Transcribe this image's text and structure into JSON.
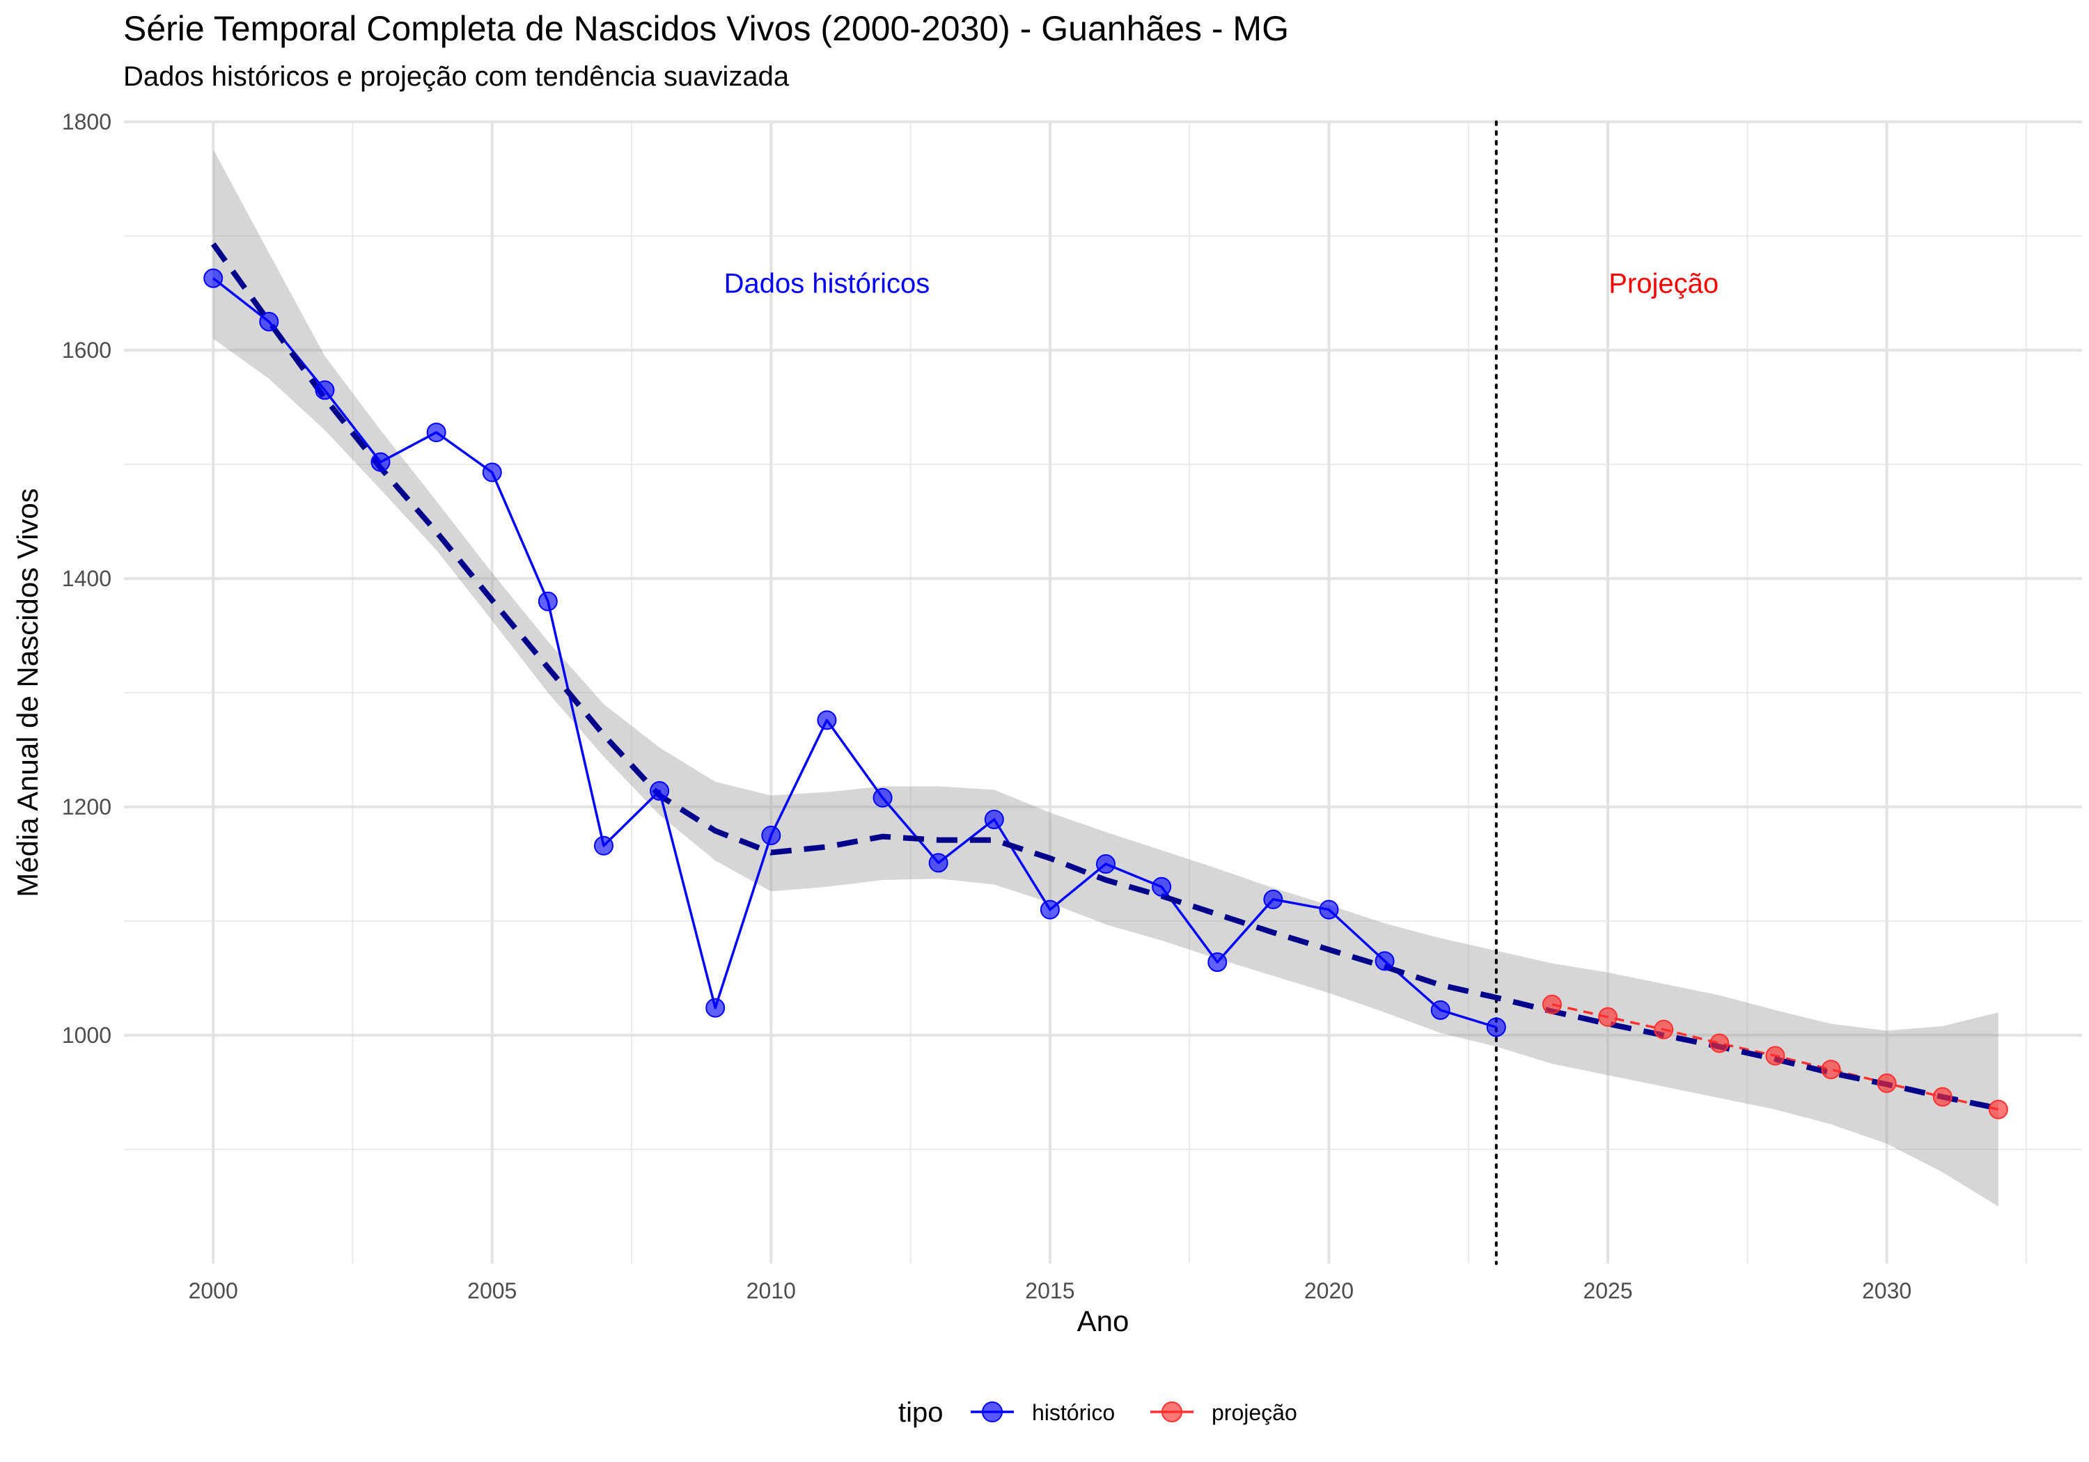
{
  "title": "Série Temporal Completa de Nascidos Vivos (2000-2030) -  Guanhães - MG",
  "subtitle": "Dados históricos e projeção com tendência suavizada",
  "chart_data": {
    "type": "line",
    "title": "Série Temporal Completa de Nascidos Vivos (2000-2030) -  Guanhães - MG",
    "subtitle": "Dados históricos e projeção com tendência suavizada",
    "xlabel": "Ano",
    "ylabel": "Média Anual de Nascidos Vivos",
    "xlim": [
      1998.4,
      2033.5
    ],
    "ylim": [
      800,
      1800
    ],
    "x_ticks": [
      2000,
      2005,
      2010,
      2015,
      2020,
      2025,
      2030
    ],
    "y_ticks": [
      1000,
      1200,
      1400,
      1600,
      1800
    ],
    "grid": true,
    "legend": {
      "title": "tipo",
      "position": "bottom",
      "entries": [
        {
          "label": "histórico",
          "color": "#0000ff"
        },
        {
          "label": "projeção",
          "color": "#ff3030"
        }
      ]
    },
    "series": [
      {
        "name": "histórico",
        "color": "#0000ff",
        "x": [
          2000,
          2001,
          2002,
          2003,
          2004,
          2005,
          2006,
          2007,
          2008,
          2009,
          2010,
          2011,
          2012,
          2013,
          2014,
          2015,
          2016,
          2017,
          2018,
          2019,
          2020,
          2021,
          2022,
          2023
        ],
        "y": [
          1663,
          1625,
          1565,
          1502,
          1528,
          1493,
          1380,
          1166,
          1214,
          1024,
          1175,
          1276,
          1208,
          1151,
          1189,
          1110,
          1150,
          1130,
          1064,
          1119,
          1110,
          1065,
          1022,
          1007
        ]
      },
      {
        "name": "projeção",
        "color": "#ff3030",
        "x": [
          2024,
          2025,
          2026,
          2027,
          2028,
          2029,
          2030,
          2031,
          2032
        ],
        "y": [
          1027,
          1016,
          1005,
          993,
          982,
          970,
          958,
          946,
          935
        ]
      }
    ],
    "trend": {
      "color": "#00008b",
      "style": "dashed",
      "x": [
        2000,
        2001,
        2002,
        2003,
        2004,
        2005,
        2006,
        2007,
        2008,
        2009,
        2010,
        2011,
        2012,
        2013,
        2014,
        2015,
        2016,
        2017,
        2018,
        2019,
        2020,
        2021,
        2022,
        2023,
        2024,
        2025,
        2026,
        2027,
        2028,
        2029,
        2030,
        2031,
        2032
      ],
      "y": [
        1693,
        1625,
        1558,
        1497,
        1441,
        1381,
        1322,
        1263,
        1210,
        1179,
        1160,
        1165,
        1174,
        1171,
        1171,
        1155,
        1136,
        1122,
        1106,
        1090,
        1075,
        1060,
        1044,
        1033,
        1021,
        1010,
        1000,
        990,
        979,
        967,
        957,
        946,
        936
      ],
      "lower": [
        1610,
        1575,
        1530,
        1478,
        1425,
        1363,
        1300,
        1244,
        1193,
        1153,
        1126,
        1130,
        1136,
        1137,
        1132,
        1116,
        1097,
        1083,
        1067,
        1052,
        1037,
        1020,
        1002,
        990,
        975,
        965,
        955,
        945,
        935,
        922,
        905,
        880,
        850
      ],
      "upper": [
        1776,
        1685,
        1595,
        1530,
        1468,
        1405,
        1345,
        1290,
        1252,
        1222,
        1210,
        1213,
        1218,
        1218,
        1215,
        1195,
        1178,
        1162,
        1146,
        1129,
        1114,
        1098,
        1085,
        1074,
        1063,
        1055,
        1045,
        1035,
        1022,
        1010,
        1004,
        1008,
        1020
      ]
    },
    "vline": {
      "x": 2023,
      "style": "dotted",
      "color": "#000000"
    },
    "annotations": [
      {
        "text": "Dados históricos",
        "x": 2011,
        "y": 1660,
        "color": "#0000ff"
      },
      {
        "text": "Projeção",
        "x": 2026,
        "y": 1660,
        "color": "#ff0000"
      }
    ]
  }
}
